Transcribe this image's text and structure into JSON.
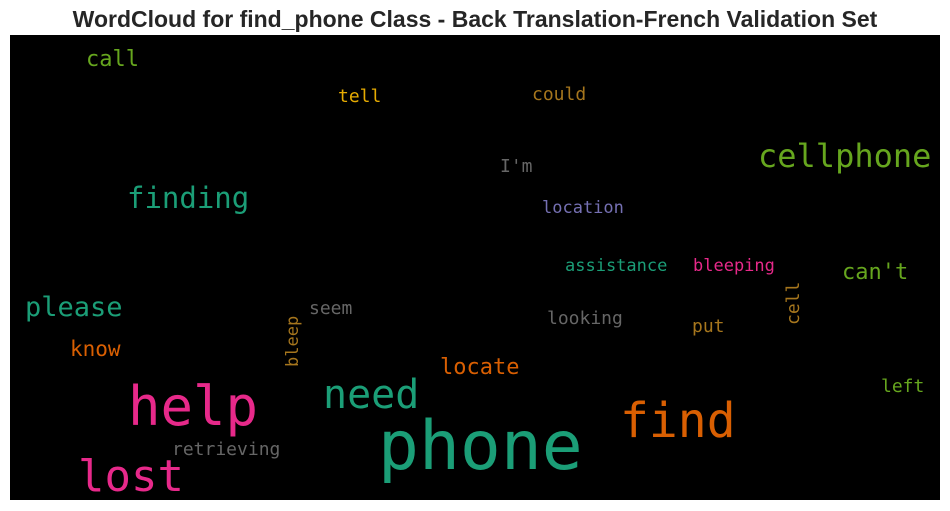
{
  "title": "WordCloud for find_phone Class - Back Translation-French Validation Set",
  "words": [
    {
      "text": "phone",
      "color": "#1b9e77"
    },
    {
      "text": "help",
      "color": "#e7298a"
    },
    {
      "text": "find",
      "color": "#d95f02"
    },
    {
      "text": "lost",
      "color": "#e7298a"
    },
    {
      "text": "need",
      "color": "#1b9e77"
    },
    {
      "text": "cellphone",
      "color": "#66a61e"
    },
    {
      "text": "finding",
      "color": "#1b9e77"
    },
    {
      "text": "please",
      "color": "#1b9e77"
    },
    {
      "text": "locate",
      "color": "#d95f02"
    },
    {
      "text": "can't",
      "color": "#66a61e"
    },
    {
      "text": "call",
      "color": "#66a61e"
    },
    {
      "text": "know",
      "color": "#d95f02"
    },
    {
      "text": "tell",
      "color": "#e6ab02"
    },
    {
      "text": "could",
      "color": "#a6761d"
    },
    {
      "text": "I'm",
      "color": "#666666"
    },
    {
      "text": "location",
      "color": "#7570b3"
    },
    {
      "text": "assistance",
      "color": "#1b9e77"
    },
    {
      "text": "bleeping",
      "color": "#e7298a"
    },
    {
      "text": "seem",
      "color": "#666666"
    },
    {
      "text": "looking",
      "color": "#666666"
    },
    {
      "text": "put",
      "color": "#a6761d"
    },
    {
      "text": "cell",
      "color": "#a6761d"
    },
    {
      "text": "bleep",
      "color": "#a6761d"
    },
    {
      "text": "left",
      "color": "#66a61e"
    },
    {
      "text": "retrieving",
      "color": "#666666"
    }
  ]
}
